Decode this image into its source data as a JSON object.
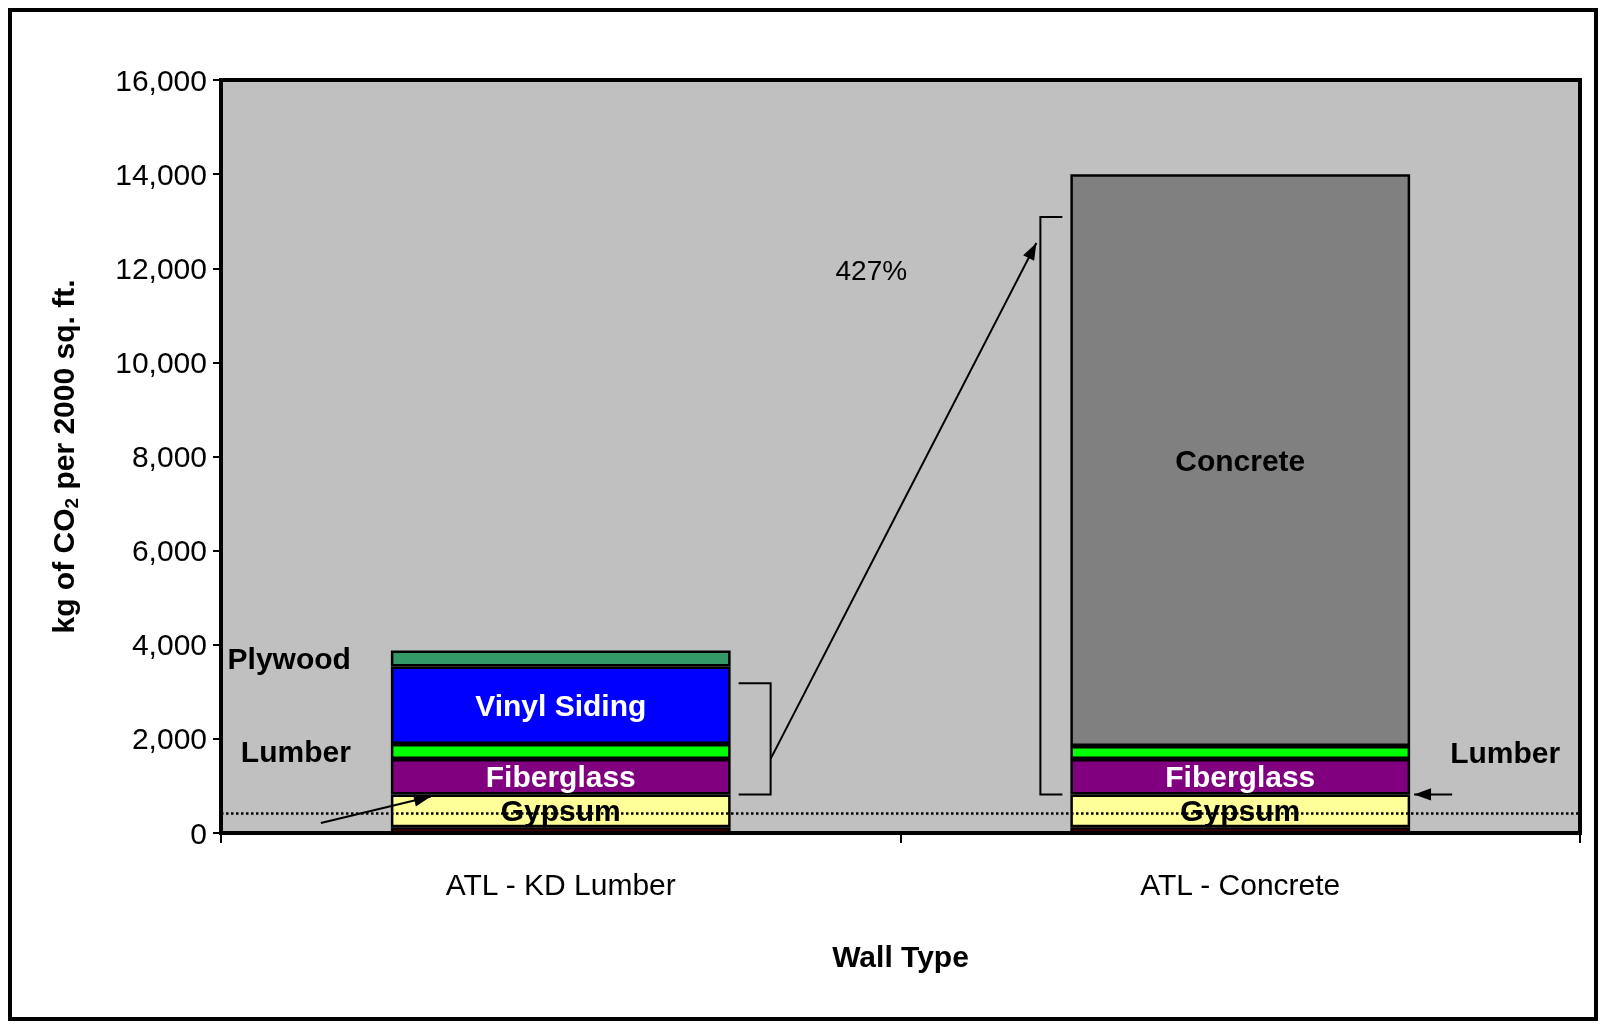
{
  "chart_data": {
    "type": "bar",
    "stacked": true,
    "xlabel": "Wall Type",
    "ylabel": "kg of CO$_{2}$ per 2000 sq. ft.",
    "categories": [
      "ATL - KD Lumber",
      "ATL - Concrete"
    ],
    "series": [
      {
        "color": "#800000",
        "values": [
          120,
          120
        ]
      },
      {
        "name": "Gypsum",
        "color": "#ffff99",
        "values": [
          700,
          700
        ]
      },
      {
        "name": "Fiberglass",
        "color": "#800080",
        "values": [
          750,
          750
        ]
      },
      {
        "name": "Lumber",
        "color": "#00ff00",
        "values": [
          320,
          280
        ]
      },
      {
        "name": "Vinyl Siding",
        "color": "#0000ff",
        "values": [
          1650,
          null
        ]
      },
      {
        "name": "Plywood",
        "color": "#339966",
        "values": [
          340,
          null
        ]
      },
      {
        "name": "Concrete",
        "color": "#808080",
        "values": [
          null,
          12150
        ]
      }
    ],
    "ylim": [
      0,
      16000
    ],
    "yticks": [
      0,
      {
        "value": 2000,
        "label": "2,000"
      },
      {
        "value": 4000,
        "label": "4,000"
      },
      {
        "value": 6000,
        "label": "6,000"
      },
      {
        "value": 8000,
        "label": "8,000"
      },
      {
        "value": 10000,
        "label": "10,000"
      },
      {
        "value": 12000,
        "label": "12,000"
      },
      {
        "value": 14000,
        "label": "14,000"
      },
      {
        "value": 16000,
        "label": "16,000"
      }
    ],
    "grid": false,
    "ref_lines": [
      {
        "axis": "y",
        "value": 430,
        "line_style": "dotted",
        "color": "#000000"
      }
    ],
    "annotations": [
      "427%"
    ]
  }
}
